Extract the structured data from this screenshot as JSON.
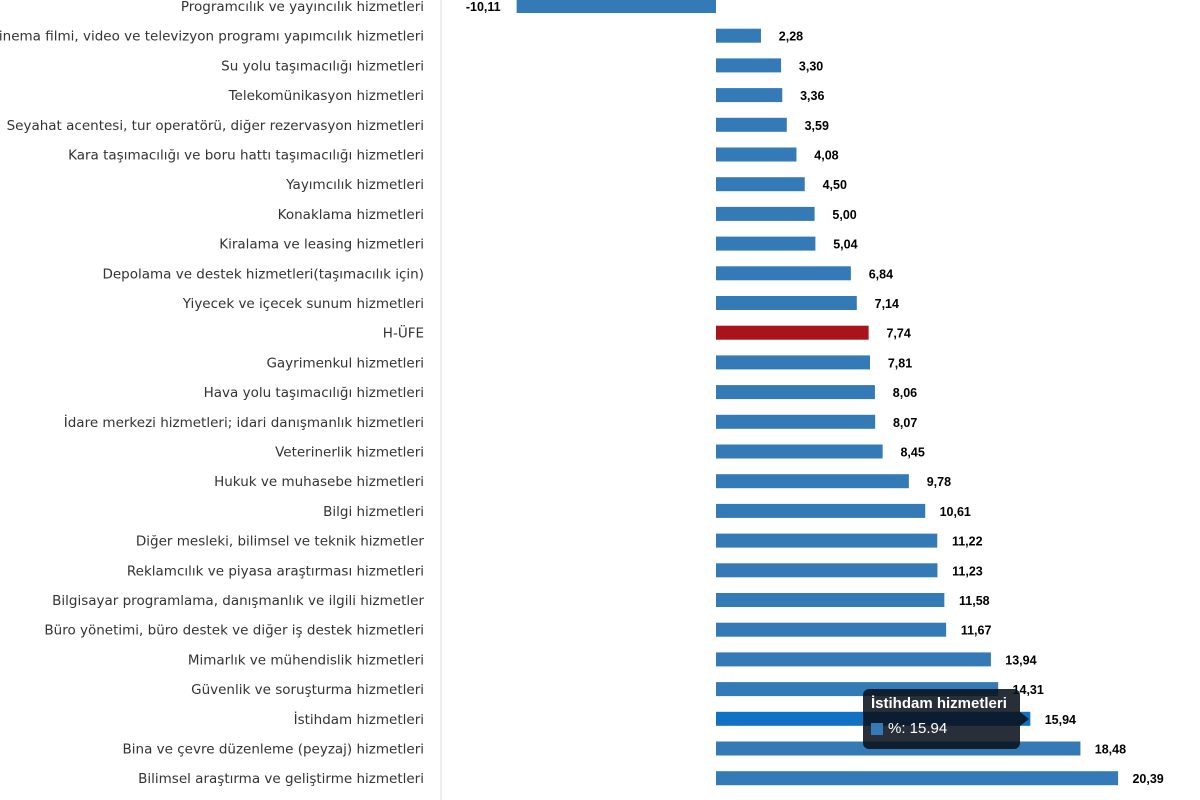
{
  "chart_data": {
    "type": "bar",
    "orientation": "horizontal",
    "categories": [
      "Programcılık ve yayıncılık hizmetleri",
      "Sinema filmi, video ve televizyon programı yapımcılık hizmetleri",
      "Su yolu taşımacılığı hizmetleri",
      "Telekomünikasyon hizmetleri",
      "Seyahat acentesi, tur operatörü, diğer rezervasyon hizmetleri",
      "Kara taşımacılığı ve boru hattı taşımacılığı hizmetleri",
      "Yayımcılık hizmetleri",
      "Konaklama hizmetleri",
      "Kiralama ve leasing hizmetleri",
      "Depolama ve destek hizmetleri(taşımacılık için)",
      "Yiyecek ve içecek sunum hizmetleri",
      "H-ÜFE",
      "Gayrimenkul hizmetleri",
      "Hava yolu taşımacılığı hizmetleri",
      "İdare merkezi hizmetleri; idari danışmanlık hizmetleri",
      "Veterinerlik hizmetleri",
      "Hukuk ve muhasebe hizmetleri",
      "Bilgi hizmetleri",
      "Diğer mesleki, bilimsel ve teknik hizmetler",
      "Reklamcılık ve piyasa araştırması hizmetleri",
      "Bilgisayar programlama, danışmanlık ve ilgili hizmetler",
      "Büro yönetimi, büro destek ve diğer iş destek hizmetleri",
      "Mimarlık ve mühendislik hizmetleri",
      "Güvenlik ve soruşturma hizmetleri",
      "İstihdam hizmetleri",
      "Bina ve çevre düzenleme (peyzaj) hizmetleri",
      "Bilimsel araştırma ve geliştirme hizmetleri"
    ],
    "values": [
      -10.11,
      2.28,
      3.3,
      3.36,
      3.59,
      4.08,
      4.5,
      5.0,
      5.04,
      6.84,
      7.14,
      7.74,
      7.81,
      8.06,
      8.07,
      8.45,
      9.78,
      10.61,
      11.22,
      11.23,
      11.58,
      11.67,
      13.94,
      14.31,
      15.94,
      18.48,
      20.39
    ],
    "data_labels": [
      "-10,11",
      "2,28",
      "3,30",
      "3,36",
      "3,59",
      "4,08",
      "4,50",
      "5,00",
      "5,04",
      "6,84",
      "7,14",
      "7,74",
      "7,81",
      "8,06",
      "8,07",
      "8,45",
      "9,78",
      "10,61",
      "11,22",
      "11,23",
      "11,58",
      "11,67",
      "13,94",
      "14,31",
      "15,94",
      "18,48",
      "20,39"
    ],
    "highlight_category": "H-ÜFE",
    "hovered_category": "İstihdam hizmetleri",
    "colors": {
      "bar": "#337ab7",
      "highlight": "#a8141a",
      "hover": "#1172c4"
    },
    "grid": false
  },
  "tooltip": {
    "title": "İstihdam hizmetleri",
    "row": "%: 15.94",
    "swatch": "#337ab7"
  }
}
